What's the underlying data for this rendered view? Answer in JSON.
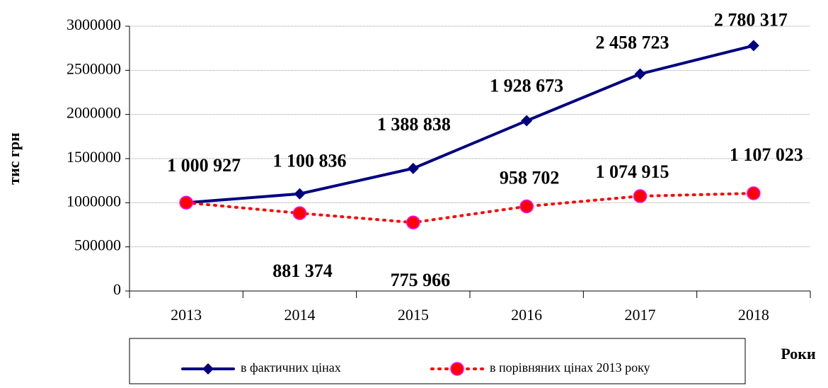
{
  "chart_data": {
    "type": "line",
    "y_label": "тис грн",
    "x_label": "Роки",
    "categories": [
      "2013",
      "2014",
      "2015",
      "2016",
      "2017",
      "2018"
    ],
    "series": [
      {
        "name": "в фактичних цінах",
        "color": "#000080",
        "marker": "diamond",
        "linestyle": "solid",
        "values": [
          1000927,
          1100836,
          1388838,
          1928673,
          2458723,
          2780317
        ],
        "value_labels": [
          "1 000 927",
          "1 100 836",
          "1 388 838",
          "1 928 673",
          "2 458 723",
          "2 780 317"
        ]
      },
      {
        "name": "в порівняних цінах 2013 року",
        "color": "#ff0000",
        "marker": "circle",
        "linestyle": "dotted",
        "values": [
          1000927,
          881374,
          775966,
          958702,
          1074915,
          1107023
        ],
        "value_labels": [
          null,
          "881 374",
          "775 966",
          "958 702",
          "1 074 915",
          "1 107 023"
        ]
      }
    ],
    "ylim": [
      0,
      3000000
    ],
    "yticks": [
      0,
      500000,
      1000000,
      1500000,
      2000000,
      2500000,
      3000000
    ],
    "grid": true,
    "legend": "bottom"
  }
}
